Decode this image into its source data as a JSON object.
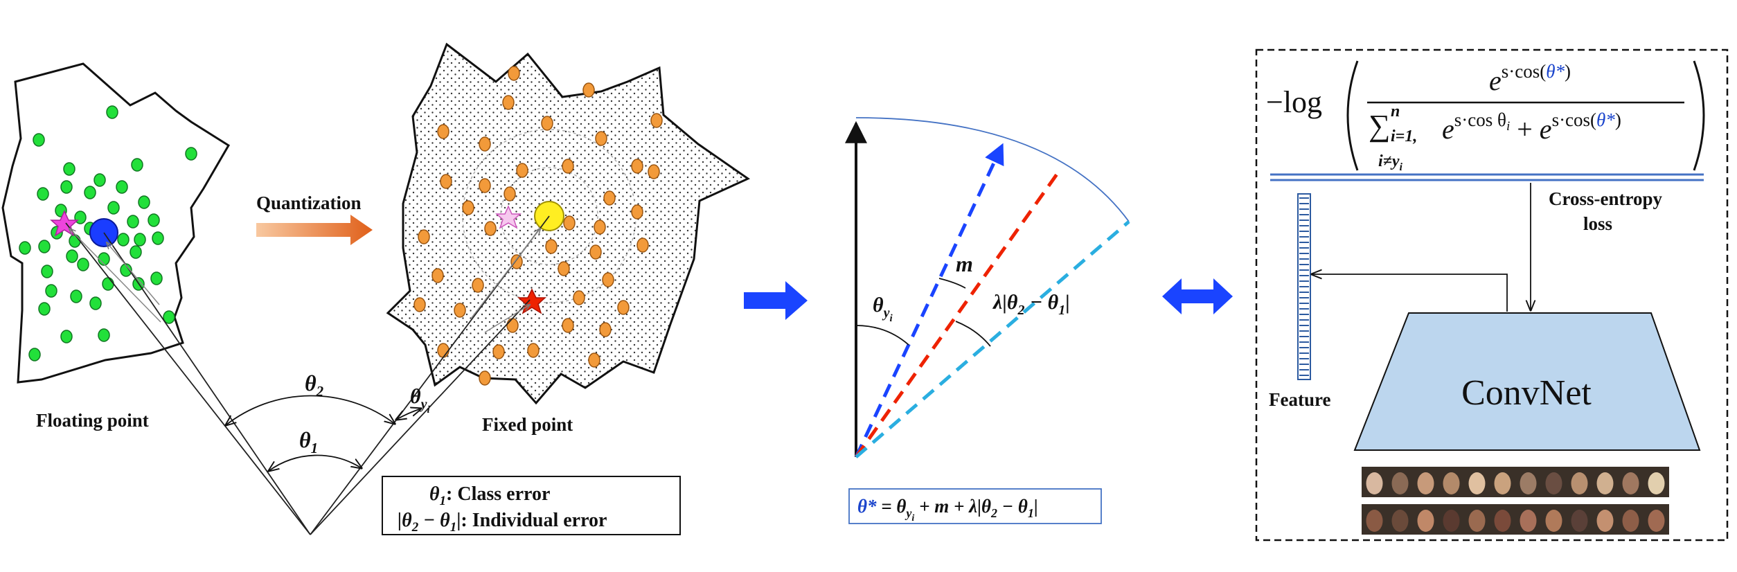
{
  "left_panel": {
    "floating_label": "Floating point",
    "fixed_label": "Fixed point",
    "quantization_label": "Quantization",
    "theta1": "θ",
    "theta1_sub": "1",
    "theta2": "θ",
    "theta2_sub": "2",
    "theta_yi": "θ",
    "theta_yi_sub": "y",
    "theta_yi_subsub": "i",
    "legend_line1_sym": "θ",
    "legend_line1_sub": "1",
    "legend_line1_text": ":  Class error",
    "legend_line2_sym": "|θ",
    "legend_line2_sub1": "2",
    "legend_line2_mid": " − θ",
    "legend_line2_sub2": "1",
    "legend_line2_text": "|:  Individual error"
  },
  "middle_panel": {
    "theta_yi": "θ",
    "theta_yi_sub": "y",
    "theta_yi_subsub": "i",
    "m_label": "m",
    "lambda_label": "λ|θ",
    "lambda_sub1": "2",
    "lambda_mid": " − θ",
    "lambda_sub2": "1",
    "lambda_end": "|",
    "formula_star": "θ*",
    "formula_eq": " = θ",
    "formula_sub_y": "y",
    "formula_sub_i": "i",
    "formula_rest": " + m + λ|θ",
    "formula_sub2": "2",
    "formula_mid": " − θ",
    "formula_sub1": "1",
    "formula_end": "|"
  },
  "right_panel": {
    "neg_log": "−log",
    "num_e": "e",
    "num_exp": "s·cos(",
    "num_theta": "θ*",
    "num_close": ")",
    "den_sum": "∑",
    "den_sum_top": "n",
    "den_sum_bottom": "i=1,",
    "den_sum_bottom2": "i≠y",
    "den_sum_bottom2_sub": "i",
    "den_e1": "e",
    "den_exp1": "s·cos θ",
    "den_exp1_sub": "i",
    "den_plus": " + ",
    "den_e2": "e",
    "den_exp2": "s·cos(",
    "den_theta": "θ*",
    "den_close": ")",
    "ce_line1": "Cross-entropy",
    "ce_line2": "loss",
    "feature_label": "Feature",
    "convnet_label": "ConvNet"
  },
  "colors": {
    "green_point": "#22e03a",
    "orange_point": "#f29a3a",
    "blue_center": "#1a3dff",
    "yellow_center": "#ffee22",
    "magenta_star": "#ee44dd",
    "red_star": "#ee2200",
    "arrow_blue": "#1a44ff",
    "convnet_fill": "#bcd6ee",
    "formula_blue": "#1a44cc"
  }
}
